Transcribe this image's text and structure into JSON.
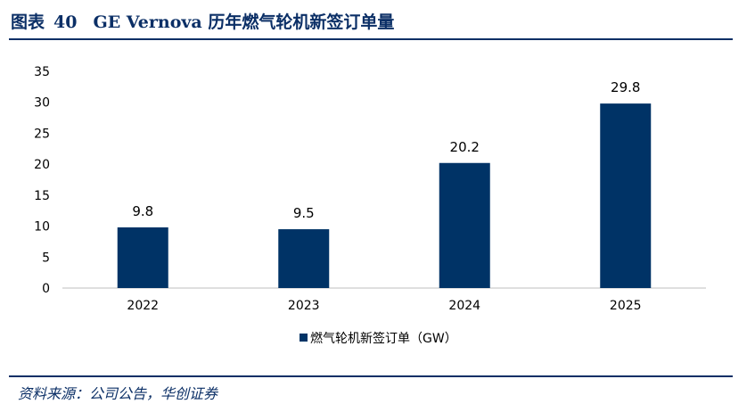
{
  "figure": {
    "label": "图表",
    "number": "40",
    "title": "GE Vernova 历年燃气轮机新签订单量"
  },
  "source": "资料来源：公司公告，华创证券",
  "colors": {
    "bar": "#003366",
    "title": "#0b2f66",
    "axis": "#bfbfbf"
  },
  "chart_data": {
    "type": "bar",
    "categories": [
      "2022",
      "2023",
      "2024",
      "2025"
    ],
    "series": [
      {
        "name": "燃气轮机新签订单（GW）",
        "values": [
          9.8,
          9.5,
          20.2,
          29.8
        ]
      }
    ],
    "data_labels": [
      "9.8",
      "9.5",
      "20.2",
      "29.8"
    ],
    "yticks": [
      "0",
      "5",
      "10",
      "15",
      "20",
      "25",
      "30",
      "35"
    ],
    "ylim": [
      0,
      35
    ],
    "grid": false,
    "legend_position": "bottom"
  }
}
